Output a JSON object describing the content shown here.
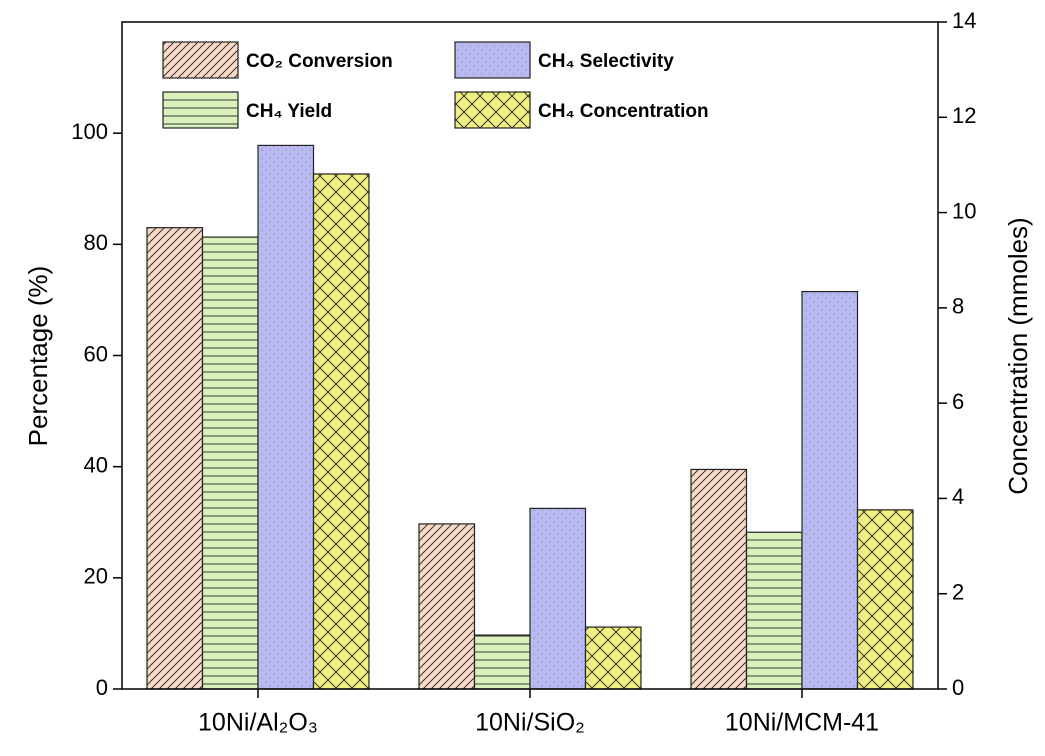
{
  "chart_data": {
    "type": "bar",
    "categories": [
      "10Ni/Al₂O₃",
      "10Ni/SiO₂",
      "10Ni/MCM-41"
    ],
    "y_label": "Percentage (%)",
    "y2_label": "Concentration (mmoles)",
    "ylim": [
      0,
      120
    ],
    "yticks": [
      0,
      20,
      40,
      60,
      80,
      100
    ],
    "y2lim": [
      0,
      14
    ],
    "y2ticks": [
      0,
      2,
      4,
      6,
      8,
      10,
      12,
      14
    ],
    "series": [
      {
        "name": "CO₂ Conversion",
        "color": "#f7d9c8",
        "hatch": "diagonal",
        "values": [
          83,
          29.7,
          39.5
        ]
      },
      {
        "name": "CH₄ Yield",
        "color": "#d9f2bd",
        "hatch": "horizontal",
        "values": [
          81.3,
          9.7,
          28.2
        ]
      },
      {
        "name": "CH₄ Selectivity",
        "color": "#b9b9f2",
        "hatch": "dots",
        "values": [
          97.8,
          32.5,
          71.5
        ]
      },
      {
        "name": "CH₄ Concentration",
        "color": "#eded80",
        "hatch": "cross",
        "values": [
          10.81,
          1.3,
          3.76
        ],
        "axis": "y2"
      }
    ]
  }
}
